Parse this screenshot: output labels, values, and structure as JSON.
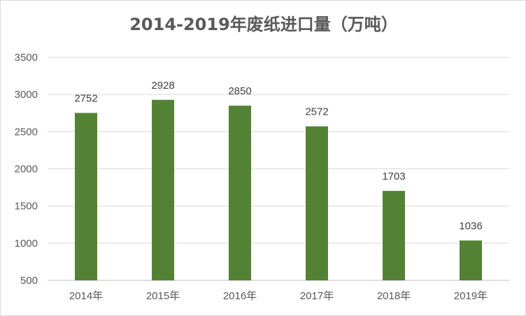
{
  "chart_data": {
    "type": "bar",
    "title": "2014-2019年废纸进口量（万吨）",
    "categories": [
      "2014年",
      "2015年",
      "2016年",
      "2017年",
      "2018年",
      "2019年"
    ],
    "values": [
      2752,
      2928,
      2850,
      2572,
      1703,
      1036
    ],
    "data_labels": [
      "2752",
      "2928",
      "2850",
      "2572",
      "1703",
      "1036"
    ],
    "ylim": [
      500,
      3500
    ],
    "yticks": [
      500,
      1000,
      1500,
      2000,
      2500,
      3000,
      3500
    ],
    "ytick_labels": [
      "500",
      "1000",
      "1500",
      "2000",
      "2500",
      "3000",
      "3500"
    ],
    "grid": true,
    "legend": "none",
    "colors": {
      "bar": "#548235",
      "grid": "#d9d9d9",
      "text": "#595959"
    }
  }
}
